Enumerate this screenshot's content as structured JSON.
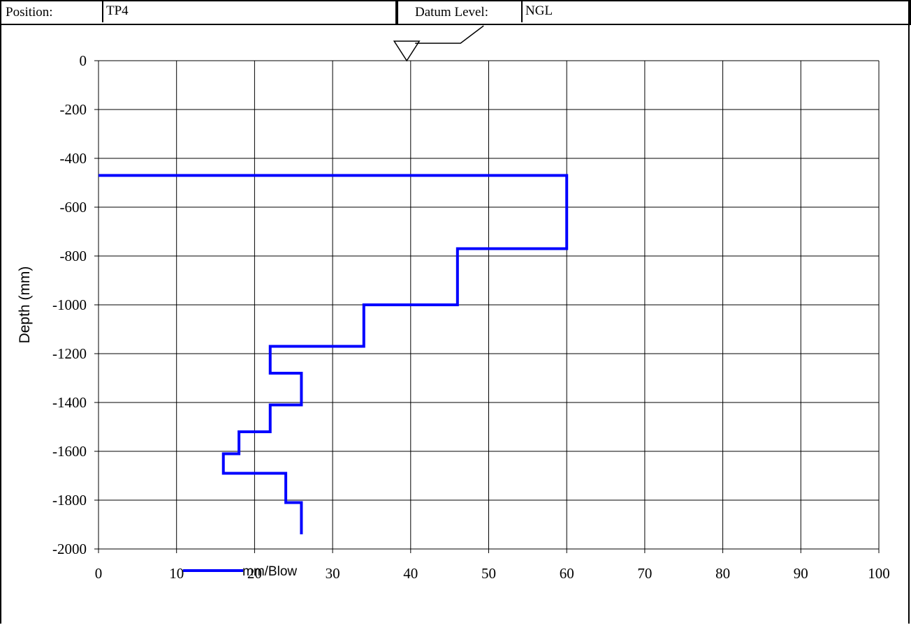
{
  "header": {
    "position_label": "Position:",
    "position_value": "TP4",
    "datum_label": "Datum Level:",
    "datum_value": "NGL"
  },
  "chart_data": {
    "type": "line",
    "ylabel": "Depth (mm)",
    "xlabel": "",
    "xlim": [
      0,
      100
    ],
    "ylim": [
      -2000,
      0
    ],
    "x_ticks": [
      0,
      10,
      20,
      30,
      40,
      50,
      60,
      70,
      80,
      90,
      100
    ],
    "y_ticks": [
      0,
      -200,
      -400,
      -600,
      -800,
      -1000,
      -1200,
      -1400,
      -1600,
      -1800,
      -2000
    ],
    "grid": true,
    "legend": "bottom-left",
    "series": [
      {
        "name": "mm/Blow",
        "color": "#0000ff",
        "points": [
          [
            0,
            -470
          ],
          [
            60,
            -470
          ],
          [
            60,
            -770
          ],
          [
            46,
            -770
          ],
          [
            46,
            -1000
          ],
          [
            34,
            -1000
          ],
          [
            34,
            -1170
          ],
          [
            22,
            -1170
          ],
          [
            22,
            -1280
          ],
          [
            26,
            -1280
          ],
          [
            26,
            -1410
          ],
          [
            22,
            -1410
          ],
          [
            22,
            -1520
          ],
          [
            18,
            -1520
          ],
          [
            18,
            -1610
          ],
          [
            16,
            -1610
          ],
          [
            16,
            -1690
          ],
          [
            24,
            -1690
          ],
          [
            24,
            -1810
          ],
          [
            26,
            -1810
          ],
          [
            26,
            -1940
          ]
        ]
      }
    ],
    "ground_marker": {
      "x": 39.5,
      "y": 0,
      "icon": "inverted-triangle-icon"
    }
  }
}
